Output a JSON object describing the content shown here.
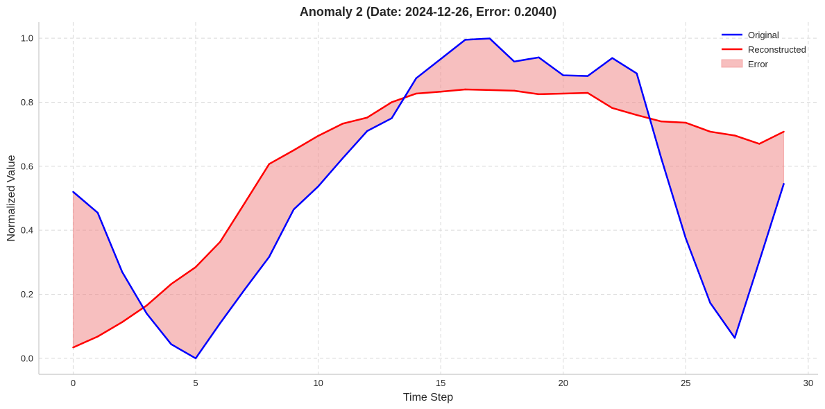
{
  "chart_data": {
    "type": "line",
    "title": "Anomaly 2 (Date: 2024-12-26, Error: 0.2040)",
    "xlabel": "Time Step",
    "ylabel": "Normalized Value",
    "xlim": [
      -1.4,
      30.4
    ],
    "ylim": [
      -0.05,
      1.05
    ],
    "xticks": [
      0,
      5,
      10,
      15,
      20,
      25,
      30
    ],
    "yticks": [
      0.0,
      0.2,
      0.4,
      0.6,
      0.8,
      1.0
    ],
    "xtick_labels": [
      "0",
      "5",
      "10",
      "15",
      "20",
      "25",
      "30"
    ],
    "ytick_labels": [
      "0.0",
      "0.2",
      "0.4",
      "0.6",
      "0.8",
      "1.0"
    ],
    "grid": true,
    "legend_position": "top-right",
    "x": [
      0,
      1,
      2,
      3,
      4,
      5,
      6,
      7,
      8,
      9,
      10,
      11,
      12,
      13,
      14,
      15,
      16,
      17,
      18,
      19,
      20,
      21,
      22,
      23,
      24,
      25,
      26,
      27,
      28,
      29
    ],
    "series": [
      {
        "name": "Original",
        "color": "#0000ff",
        "values": [
          0.52,
          0.455,
          0.27,
          0.14,
          0.044,
          0.0,
          0.11,
          0.215,
          0.317,
          0.465,
          0.537,
          0.625,
          0.71,
          0.75,
          0.875,
          0.935,
          0.995,
          0.999,
          0.927,
          0.94,
          0.884,
          0.882,
          0.938,
          0.89,
          0.625,
          0.375,
          0.173,
          0.064,
          0.303,
          0.545
        ]
      },
      {
        "name": "Reconstructed",
        "color": "#ff0000",
        "values": [
          0.034,
          0.068,
          0.113,
          0.165,
          0.232,
          0.285,
          0.364,
          0.485,
          0.607,
          0.65,
          0.695,
          0.733,
          0.752,
          0.8,
          0.827,
          0.833,
          0.84,
          0.838,
          0.836,
          0.825,
          0.827,
          0.829,
          0.782,
          0.76,
          0.74,
          0.736,
          0.708,
          0.696,
          0.67,
          0.708
        ]
      }
    ],
    "fill": {
      "name": "Error",
      "color": "#f08080",
      "opacity": 0.5
    }
  }
}
